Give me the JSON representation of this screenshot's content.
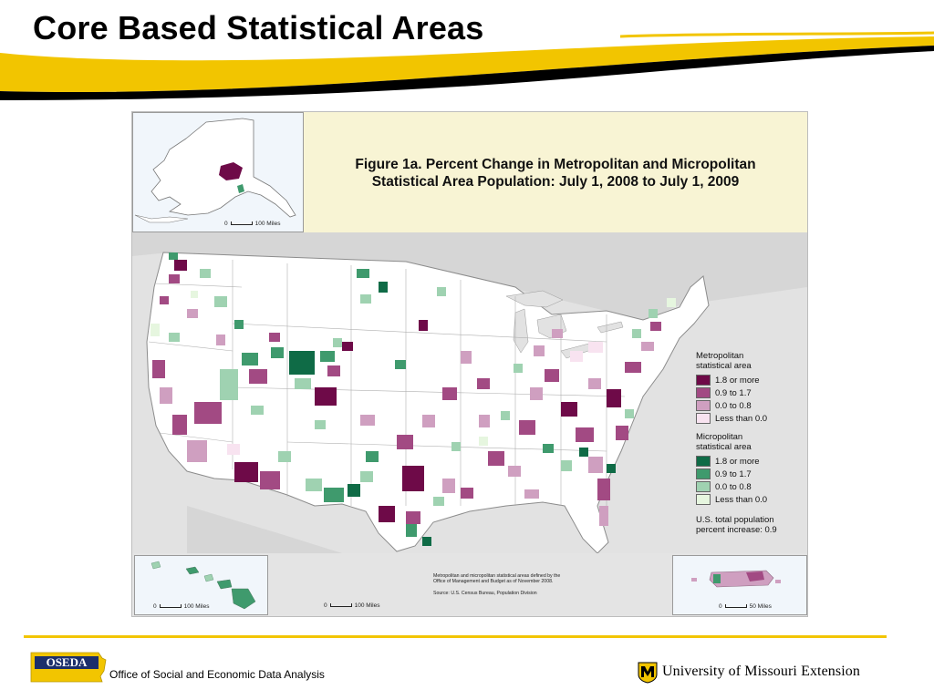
{
  "slide": {
    "title": "Core Based Statistical Areas"
  },
  "figure": {
    "title_line1": "Figure 1a. Percent Change in Metropolitan and Micropolitan",
    "title_line2": "Statistical Area Population: July 1, 2008 to July 1, 2009",
    "scale_bars": {
      "alaska": {
        "zero": "0",
        "label": "100 Miles"
      },
      "hawaii": {
        "zero": "0",
        "label": "100 Miles"
      },
      "conus": {
        "zero": "0",
        "label": "100 Miles"
      },
      "puerto_rico": {
        "zero": "0",
        "label": "50 Miles"
      }
    },
    "legend": {
      "metro": {
        "heading_line1": "Metropolitan",
        "heading_line2": "statistical area",
        "classes": [
          {
            "label": "1.8 or more",
            "color": "#6e0a48"
          },
          {
            "label": "0.9 to 1.7",
            "color": "#a24a83"
          },
          {
            "label": "0.0 to 0.8",
            "color": "#cf9fc0"
          },
          {
            "label": "Less than 0.0",
            "color": "#f8e3f0"
          }
        ]
      },
      "micro": {
        "heading_line1": "Micropolitan",
        "heading_line2": "statistical area",
        "classes": [
          {
            "label": "1.8 or more",
            "color": "#0f6b46"
          },
          {
            "label": "0.9 to 1.7",
            "color": "#3f9a6d"
          },
          {
            "label": "0.0 to 0.8",
            "color": "#9fd2b1"
          },
          {
            "label": "Less than 0.0",
            "color": "#e6f6df"
          }
        ]
      },
      "total_line1": "U.S. total population",
      "total_line2": "percent increase: 0.9"
    },
    "note_line1": "Metropolitan and micropolitan statistical areas defined by the",
    "note_line2": "Office of Management and Budget as of November 2008.",
    "source": "Source: U.S. Census Bureau, Population Division"
  },
  "footer": {
    "oseda_logo_text": "OSEDA",
    "oseda_name": "Office of Social and Economic Data Analysis",
    "um_name": "University of Missouri Extension"
  },
  "colors": {
    "accent_yellow": "#f2c500",
    "header_black": "#000000"
  }
}
